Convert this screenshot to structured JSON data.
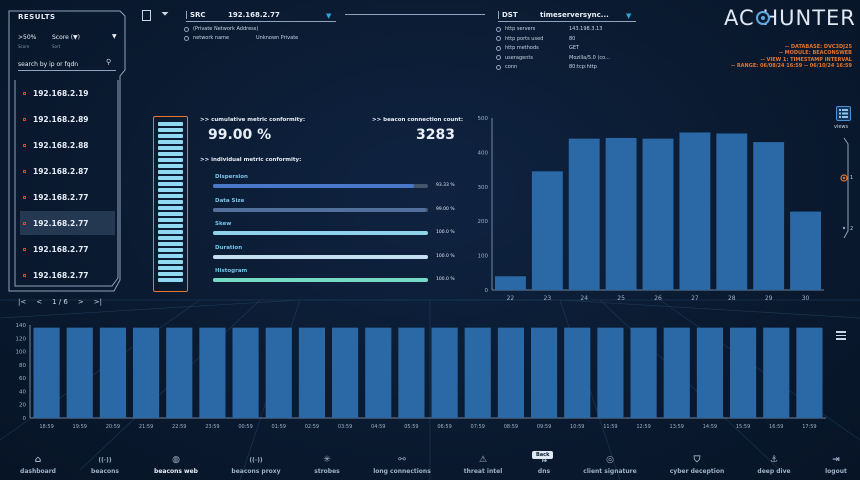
{
  "results": {
    "title": "RESULTS",
    "percent_filter": ">50%",
    "percent_label": "Score",
    "sort_select": "Score (▼)",
    "sort_label": "Sort",
    "search_placeholder": "search by ip or fqdn",
    "items": [
      "192.168.2.19",
      "192.168.2.89",
      "192.168.2.88",
      "192.168.2.87",
      "192.168.2.77",
      "192.168.2.77",
      "192.168.2.77",
      "192.168.2.77"
    ],
    "selected_index": 5,
    "pager": {
      "page": "1 / 6"
    }
  },
  "src": {
    "label": "SRC",
    "value": "192.168.2.77",
    "rows": [
      {
        "key": "(Private Network Address)",
        "val": ""
      },
      {
        "key": "network name",
        "val": "Unknown Private"
      }
    ]
  },
  "dst": {
    "label": "DST",
    "value": "timeserversync...",
    "rows": [
      {
        "key": "http servers",
        "val": "143.198.3.13"
      },
      {
        "key": "http ports used",
        "val": "80"
      },
      {
        "key": "http methods",
        "val": "GET"
      },
      {
        "key": "useragents",
        "val": "Mozilla/5.0 (co..."
      },
      {
        "key": "conn",
        "val": "80:tcp:http"
      }
    ]
  },
  "logo": {
    "text": "AC HUNTER"
  },
  "info": {
    "database": "-- DATABASE: DVC3DJ25",
    "module": "-- MODULE: BEACONSWEB",
    "view": "-- VIEW 1: TIMESTAMP INTERVAL",
    "range": "-- RANGE: 06/08/24 16:59 -- 06/10/24 16:59"
  },
  "metrics": {
    "cumulative_label": ">> cumulative metric conformity:",
    "cumulative_value": "99.00 %",
    "count_label": ">> beacon connection count:",
    "count_value": "3283",
    "individual_label": ">> individual metric conformity:",
    "meter_fraction": 0.99,
    "items": [
      {
        "name": "Dispersion",
        "value": "93.33 %",
        "fraction": 0.9333,
        "color": "#4a78c9"
      },
      {
        "name": "Data Size",
        "value": "99.00 %",
        "fraction": 0.99,
        "color": "#53709c"
      },
      {
        "name": "Skew",
        "value": "100.0 %",
        "fraction": 1.0,
        "color": "#8fd3ea"
      },
      {
        "name": "Duration",
        "value": "100.0 %",
        "fraction": 1.0,
        "color": "#c4dff0"
      },
      {
        "name": "Histogram",
        "value": "100.0 %",
        "fraction": 1.0,
        "color": "#77d8c6"
      }
    ]
  },
  "views": {
    "label": "views",
    "options": [
      "1",
      "2"
    ]
  },
  "chart_data": [
    {
      "type": "bar",
      "categories": [
        "22",
        "23",
        "24",
        "25",
        "26",
        "27",
        "28",
        "29",
        "30"
      ],
      "values": [
        40,
        345,
        440,
        442,
        440,
        458,
        455,
        430,
        228
      ],
      "ylim": [
        0,
        500
      ],
      "yticks": [
        0,
        100,
        200,
        300,
        400,
        500
      ],
      "bar_color": "#2b68a6"
    },
    {
      "type": "bar",
      "categories": [
        "18:59",
        "19:59",
        "20:59",
        "21:59",
        "22:59",
        "23:59",
        "00:59",
        "01:59",
        "02:59",
        "03:59",
        "04:59",
        "05:59",
        "06:59",
        "07:59",
        "08:59",
        "09:59",
        "10:59",
        "11:59",
        "12:59",
        "13:59",
        "14:59",
        "15:59",
        "16:59",
        "17:59"
      ],
      "values": [
        136,
        136,
        136,
        136,
        136,
        136,
        136,
        136,
        136,
        136,
        136,
        136,
        136,
        136,
        136,
        136,
        136,
        136,
        136,
        136,
        136,
        136,
        136,
        136
      ],
      "ylim": [
        0,
        140
      ],
      "yticks": [
        0,
        20,
        40,
        60,
        80,
        100,
        120,
        140
      ],
      "bar_color": "#2b68a6"
    }
  ],
  "nav": [
    {
      "label": "dashboard",
      "icon": "home-icon",
      "glyph": "⌂"
    },
    {
      "label": "beacons",
      "icon": "broadcast-icon",
      "glyph": "((·))"
    },
    {
      "label": "beacons web",
      "icon": "globe-icon",
      "glyph": "◍"
    },
    {
      "label": "beacons proxy",
      "icon": "proxy-icon",
      "glyph": "((·))"
    },
    {
      "label": "strobes",
      "icon": "strobe-icon",
      "glyph": "✳"
    },
    {
      "label": "long connections",
      "icon": "connection-icon",
      "glyph": "⚯"
    },
    {
      "label": "threat intel",
      "icon": "warning-icon",
      "glyph": "⚠"
    },
    {
      "label": "dns",
      "icon": "dns-icon",
      "glyph": "⇅"
    },
    {
      "label": "client signature",
      "icon": "fingerprint-icon",
      "glyph": "◎"
    },
    {
      "label": "cyber deception",
      "icon": "shield-icon",
      "glyph": "⛉"
    },
    {
      "label": "deep dive",
      "icon": "dive-icon",
      "glyph": "⚓"
    },
    {
      "label": "logout",
      "icon": "logout-icon",
      "glyph": "⇥"
    }
  ],
  "back_tooltip": "Back"
}
